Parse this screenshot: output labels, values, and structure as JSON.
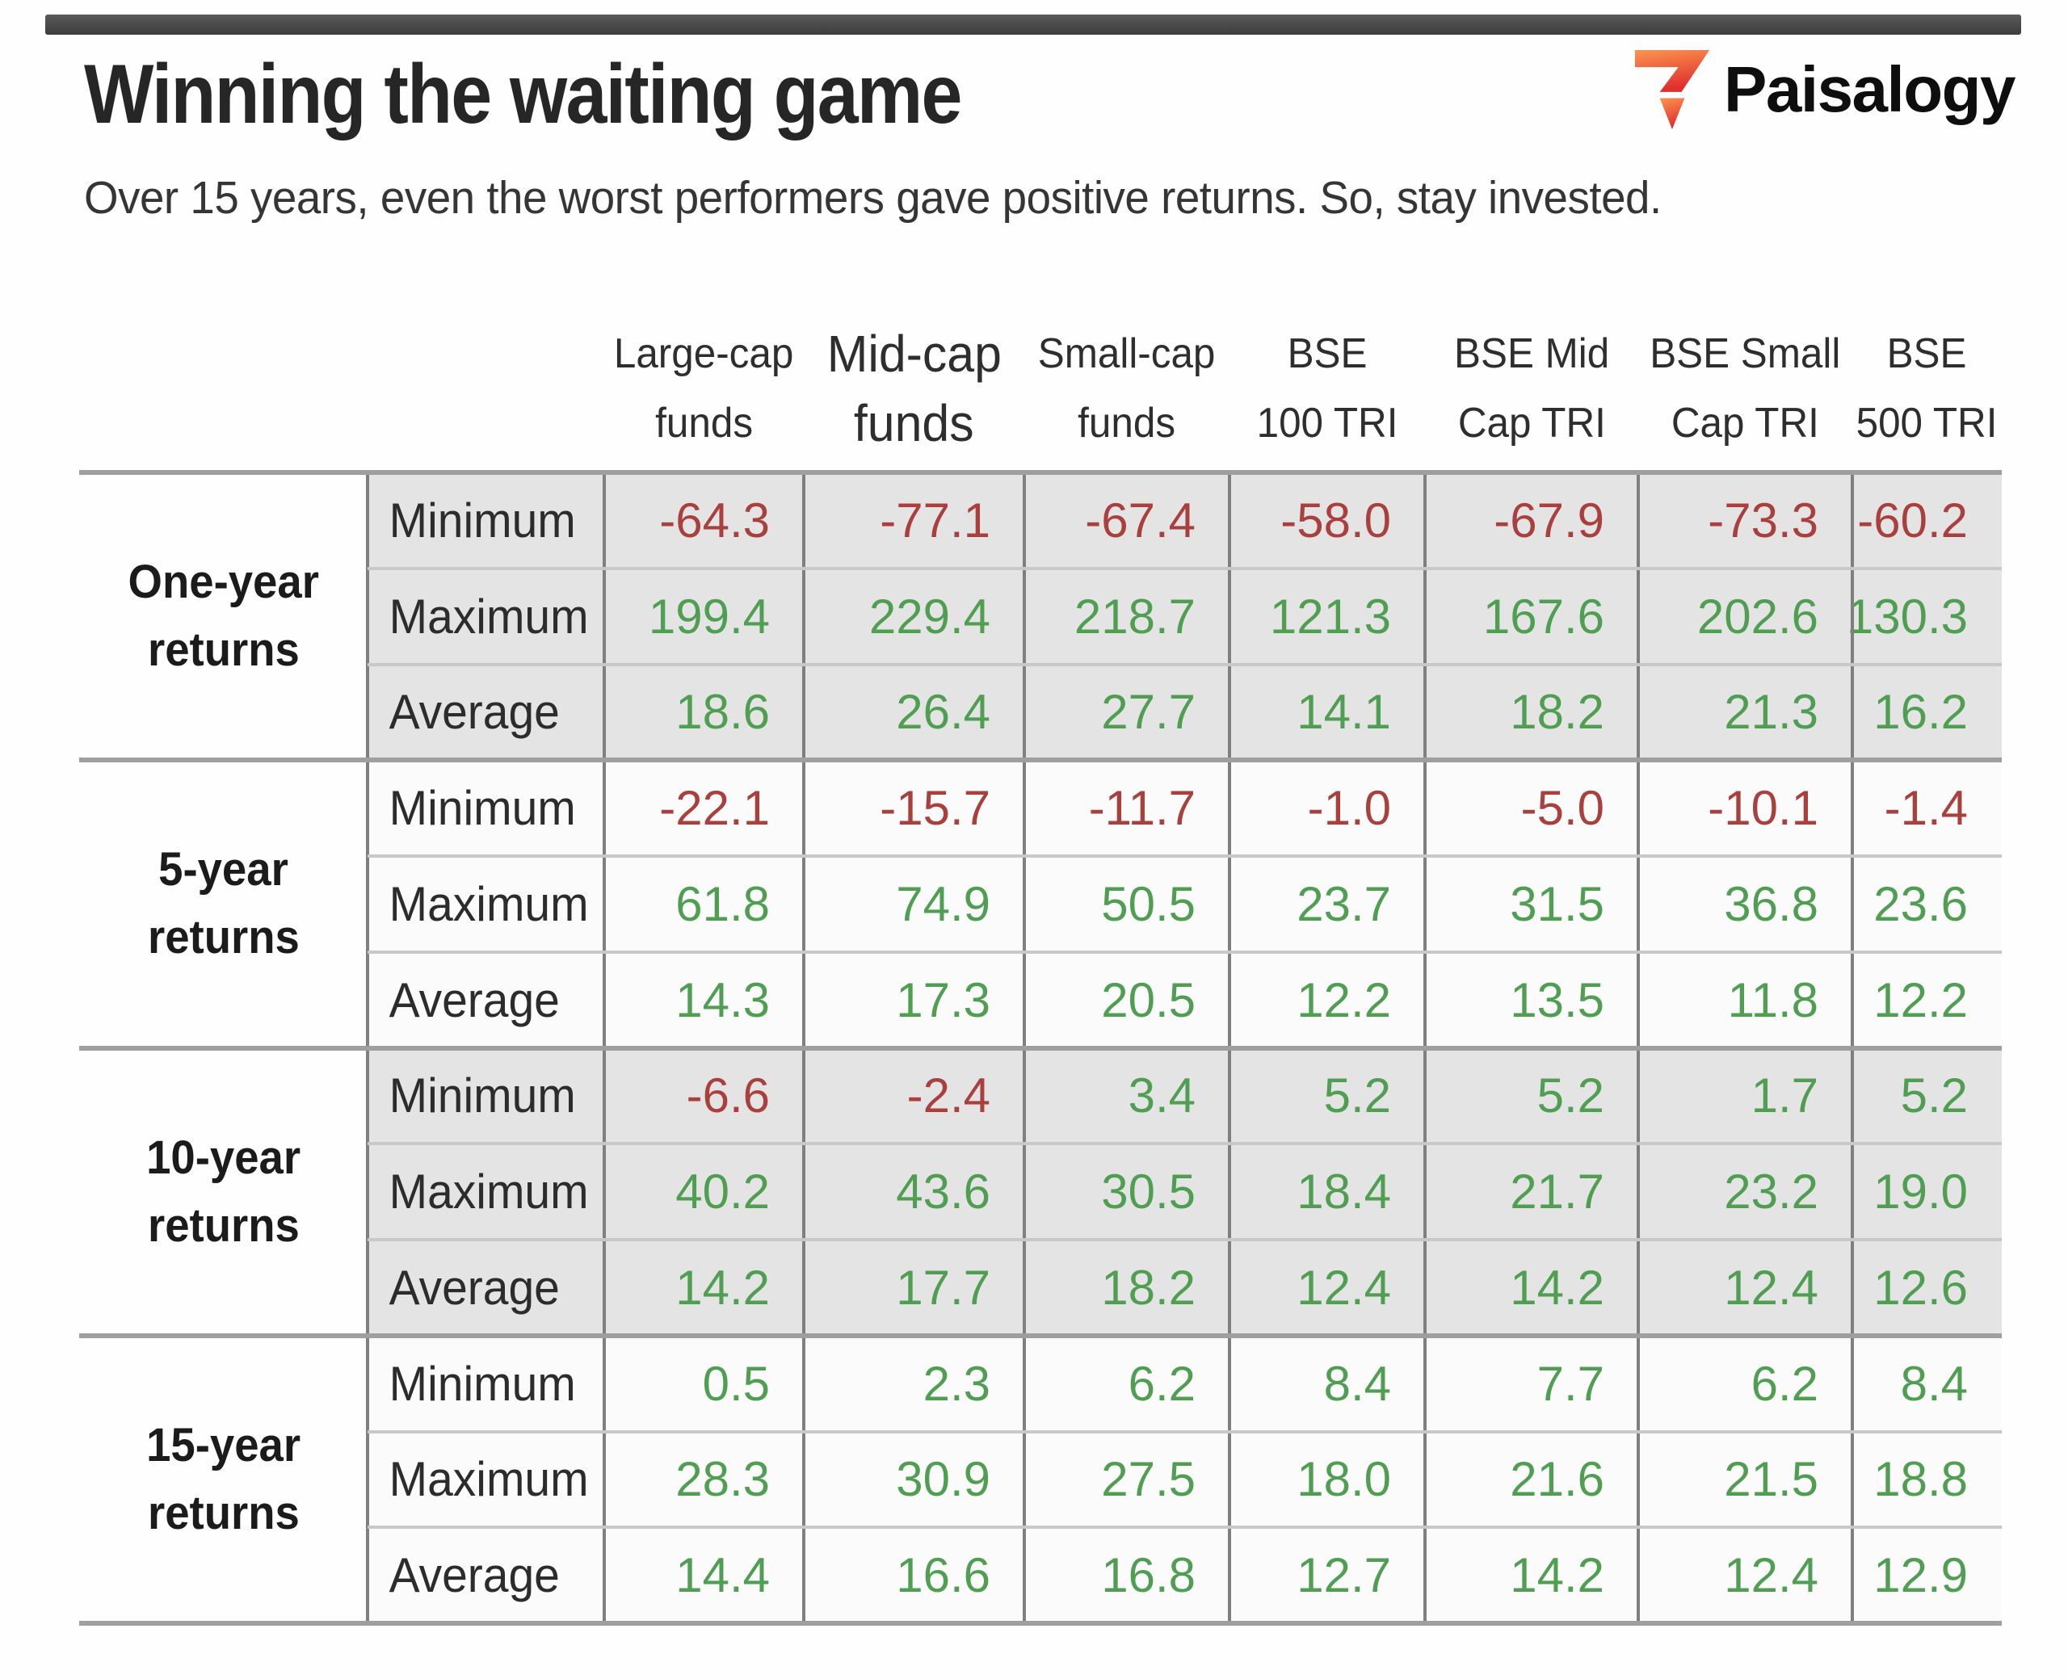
{
  "header": {
    "title": "Winning the waiting game",
    "subtitle": "Over 15 years, even the worst performers gave positive returns. So, stay invested.",
    "logo_text": "Paisalogy"
  },
  "colors": {
    "positive": "#4f9e52",
    "negative": "#a9403d",
    "shaded_row": "#e4e4e5",
    "logo_gradient_top": "#fb9550",
    "logo_gradient_bottom": "#e02d2d"
  },
  "chart_data": {
    "type": "table",
    "title": "Winning the waiting game",
    "subtitle": "Over 15 years, even the worst performers gave positive returns. So, stay invested.",
    "columns": [
      "Large-cap funds",
      "Mid-cap funds",
      "Small-cap funds",
      "BSE 100 TRI",
      "BSE Mid Cap TRI",
      "BSE Small Cap TRI",
      "BSE 500 TRI"
    ],
    "columns_two_line": [
      [
        "Large-cap",
        "funds"
      ],
      [
        "Mid-cap",
        "funds"
      ],
      [
        "Small-cap",
        "funds"
      ],
      [
        "BSE",
        "100 TRI"
      ],
      [
        "BSE Mid",
        "Cap TRI"
      ],
      [
        "BSE Small",
        "Cap TRI"
      ],
      [
        "BSE",
        "500 TRI"
      ]
    ],
    "metrics": [
      "Minimum",
      "Maximum",
      "Average"
    ],
    "row_groups": [
      {
        "period": "One-year returns",
        "period_lines": [
          "One-year",
          "returns"
        ],
        "shaded": true,
        "rows": [
          {
            "metric": "Minimum",
            "values": [
              "-64.3",
              "-77.1",
              "-67.4",
              "-58.0",
              "-67.9",
              "-73.3",
              "-60.2"
            ]
          },
          {
            "metric": "Maximum",
            "values": [
              "199.4",
              "229.4",
              "218.7",
              "121.3",
              "167.6",
              "202.6",
              "130.3"
            ]
          },
          {
            "metric": "Average",
            "values": [
              "18.6",
              "26.4",
              "27.7",
              "14.1",
              "18.2",
              "21.3",
              "16.2"
            ]
          }
        ]
      },
      {
        "period": "5-year returns",
        "period_lines": [
          "5-year",
          "returns"
        ],
        "shaded": false,
        "rows": [
          {
            "metric": "Minimum",
            "values": [
              "-22.1",
              "-15.7",
              "-11.7",
              "-1.0",
              "-5.0",
              "-10.1",
              "-1.4"
            ]
          },
          {
            "metric": "Maximum",
            "values": [
              "61.8",
              "74.9",
              "50.5",
              "23.7",
              "31.5",
              "36.8",
              "23.6"
            ]
          },
          {
            "metric": "Average",
            "values": [
              "14.3",
              "17.3",
              "20.5",
              "12.2",
              "13.5",
              "11.8",
              "12.2"
            ]
          }
        ]
      },
      {
        "period": "10-year returns",
        "period_lines": [
          "10-year",
          "returns"
        ],
        "shaded": true,
        "rows": [
          {
            "metric": "Minimum",
            "values": [
              "-6.6",
              "-2.4",
              "3.4",
              "5.2",
              "5.2",
              "1.7",
              "5.2"
            ]
          },
          {
            "metric": "Maximum",
            "values": [
              "40.2",
              "43.6",
              "30.5",
              "18.4",
              "21.7",
              "23.2",
              "19.0"
            ]
          },
          {
            "metric": "Average",
            "values": [
              "14.2",
              "17.7",
              "18.2",
              "12.4",
              "14.2",
              "12.4",
              "12.6"
            ]
          }
        ]
      },
      {
        "period": "15-year returns",
        "period_lines": [
          "15-year",
          "returns"
        ],
        "shaded": false,
        "rows": [
          {
            "metric": "Minimum",
            "values": [
              "0.5",
              "2.3",
              "6.2",
              "8.4",
              "7.7",
              "6.2",
              "8.4"
            ]
          },
          {
            "metric": "Maximum",
            "values": [
              "28.3",
              "30.9",
              "27.5",
              "18.0",
              "21.6",
              "21.5",
              "18.8"
            ]
          },
          {
            "metric": "Average",
            "values": [
              "14.4",
              "16.6",
              "16.8",
              "12.7",
              "14.2",
              "12.4",
              "12.9"
            ]
          }
        ]
      }
    ]
  }
}
